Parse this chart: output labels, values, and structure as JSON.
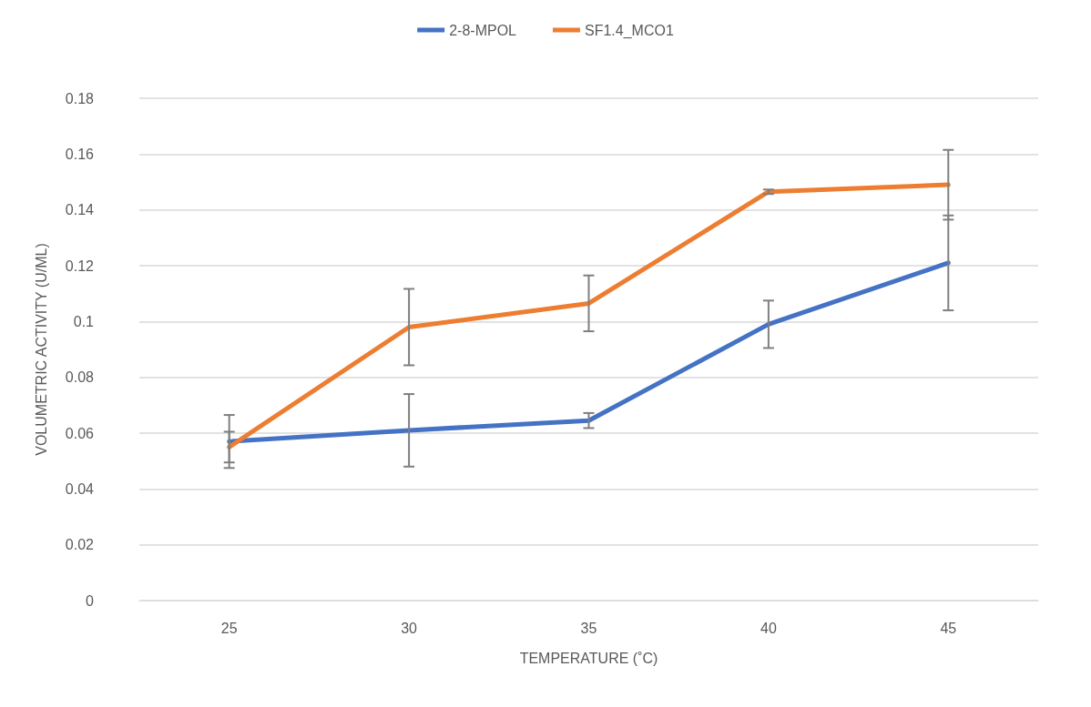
{
  "chart_data": {
    "type": "line",
    "xlabel": "TEMPERATURE (˚C)",
    "ylabel": "VOLUMETRIC ACTIVITY (U/ML)",
    "categories": [
      "25",
      "30",
      "35",
      "40",
      "45"
    ],
    "series": [
      {
        "name": "2-8-MPOL",
        "color": "#4472c4",
        "values": [
          0.057,
          0.061,
          0.0645,
          0.099,
          0.121
        ],
        "errors": [
          0.0095,
          0.013,
          0.0027,
          0.0085,
          0.017
        ]
      },
      {
        "name": "SF1.4_MCO1",
        "color": "#ed7d31",
        "values": [
          0.055,
          0.098,
          0.1065,
          0.1465,
          0.149
        ],
        "errors": [
          0.0055,
          0.0137,
          0.01,
          0.0008,
          0.0125
        ]
      }
    ],
    "ylim": [
      0,
      0.18
    ],
    "yticks": [
      0,
      0.02,
      0.04,
      0.06,
      0.08,
      0.1,
      0.12,
      0.14,
      0.16,
      0.18
    ],
    "grid": "y",
    "legend": "top",
    "marker": "none",
    "line_style": "solid"
  }
}
